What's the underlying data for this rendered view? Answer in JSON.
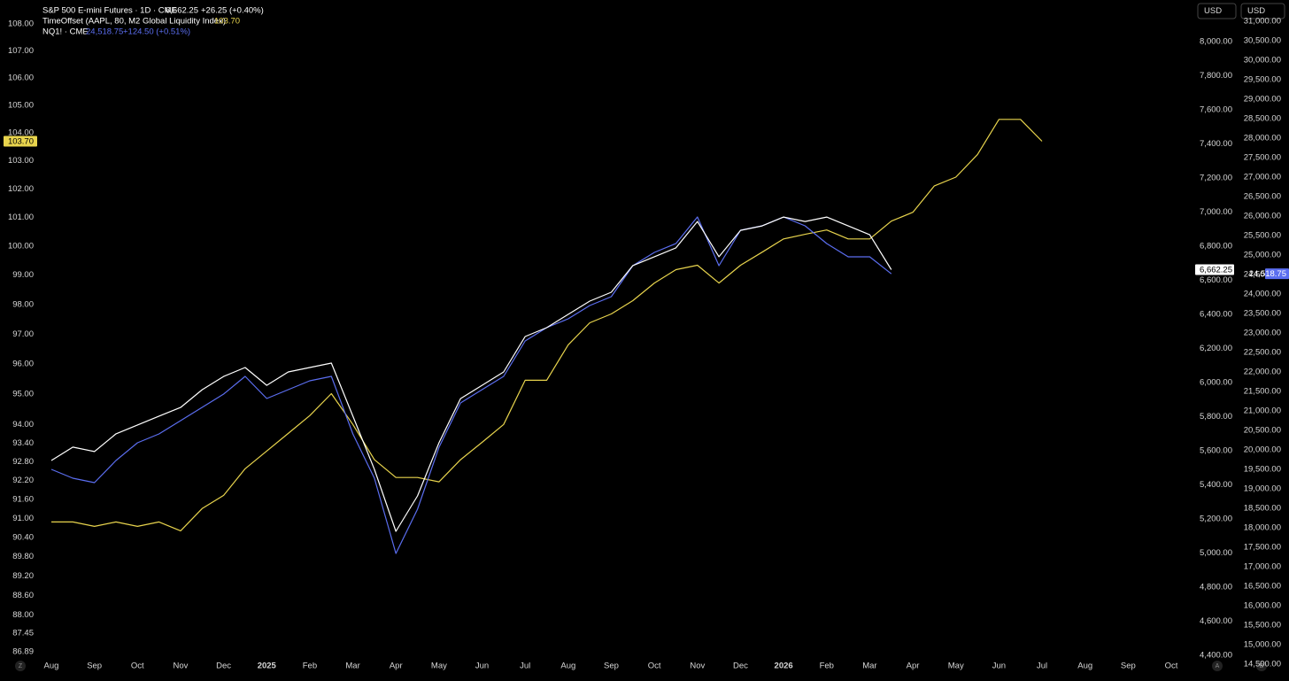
{
  "chart_data": {
    "type": "line",
    "categories": [
      "Aug",
      null,
      "Sep",
      null,
      "Oct",
      null,
      "Nov",
      null,
      "Dec",
      null,
      "2025",
      null,
      "Feb",
      null,
      "Mar",
      null,
      "Apr",
      null,
      "May",
      null,
      "Jun",
      null,
      "Jul",
      null,
      "Aug",
      null,
      "Sep",
      null,
      "Oct",
      null,
      "Nov",
      null,
      "Dec",
      null,
      "2026",
      null,
      "Feb",
      null,
      "Mar",
      null,
      "Apr",
      null,
      "May",
      null,
      "Jun",
      null,
      "Jul",
      null,
      "Aug",
      null,
      "Sep",
      null,
      "Oct"
    ],
    "series": [
      {
        "name": "TimeOffset (AAPL, 80, M2 Global Liquidity Index)",
        "color": "#e8d44d",
        "axis": "y",
        "last_value": 103.7,
        "last_label": "103.70",
        "values": [
          90.89,
          90.89,
          90.75,
          90.89,
          90.75,
          90.89,
          90.61,
          91.31,
          91.73,
          92.58,
          93.15,
          93.72,
          94.3,
          95.02,
          94.01,
          92.87,
          92.3,
          92.3,
          92.16,
          92.87,
          93.43,
          94.01,
          95.46,
          95.46,
          96.64,
          97.38,
          97.68,
          98.13,
          98.73,
          99.19,
          99.34,
          98.73,
          99.34,
          99.79,
          100.25,
          100.41,
          100.56,
          100.25,
          100.25,
          100.87,
          101.18,
          102.11,
          102.42,
          103.22,
          104.49,
          104.49,
          103.7,
          null,
          null,
          null,
          null,
          null,
          null
        ]
      },
      {
        "name": "NQ1! · CME",
        "color": "#5b6ef0",
        "axis": "y3",
        "last_value": 24518.75,
        "last_label": "24,518.75",
        "change_label": "+124.50 (+0.51%)",
        "values": [
          19500,
          19273,
          19159,
          19727,
          20182,
          20409,
          20750,
          21091,
          21432,
          21886,
          21318,
          21545,
          21773,
          21886,
          20409,
          19273,
          17341,
          18477,
          20068,
          21205,
          21545,
          21886,
          22795,
          23136,
          23364,
          23705,
          23932,
          24727,
          25068,
          25295,
          25977,
          24727,
          25636,
          25750,
          25977,
          25750,
          25295,
          24955,
          24955,
          24518.75,
          null,
          null,
          null,
          null,
          null,
          null,
          null,
          null,
          null,
          null,
          null,
          null,
          null
        ]
      },
      {
        "name": "S&P 500 E-mini Futures · 1D · CME",
        "color": "#ffffff",
        "axis": "y2",
        "last_value": 6662.25,
        "last_label": "6,662.25",
        "change_label": "+26.25 (+0.40%)",
        "values": [
          5543,
          5621,
          5595,
          5699,
          5751,
          5803,
          5854,
          5958,
          6036,
          6088,
          5984,
          6062,
          6088,
          6114,
          5803,
          5491,
          5127,
          5335,
          5647,
          5906,
          5984,
          6062,
          6270,
          6322,
          6400,
          6478,
          6530,
          6686,
          6738,
          6790,
          6945,
          6738,
          6893,
          6919,
          6971,
          6945,
          6971,
          6919,
          6867,
          6662.25,
          null,
          null,
          null,
          null,
          null,
          null,
          null,
          null,
          null,
          null,
          null,
          null,
          null
        ]
      }
    ],
    "log_y": true,
    "ylim": [
      86.52,
      108.9
    ],
    "yticks": [
      {
        "value": 108,
        "label": "108.00"
      },
      {
        "value": 107,
        "label": "107.00"
      },
      {
        "value": 106,
        "label": "106.00"
      },
      {
        "value": 105,
        "label": "105.00"
      },
      {
        "value": 104,
        "label": "104.00"
      },
      {
        "value": 103,
        "label": "103.00"
      },
      {
        "value": 102,
        "label": "102.00"
      },
      {
        "value": 101,
        "label": "101.00"
      },
      {
        "value": 100,
        "label": "100.00"
      },
      {
        "value": 99,
        "label": "99.00"
      },
      {
        "value": 98,
        "label": "98.00"
      },
      {
        "value": 97,
        "label": "97.00"
      },
      {
        "value": 96,
        "label": "96.00"
      },
      {
        "value": 95,
        "label": "95.00"
      },
      {
        "value": 94,
        "label": "94.00"
      },
      {
        "value": 93.4,
        "label": "93.40"
      },
      {
        "value": 92.8,
        "label": "92.80"
      },
      {
        "value": 92.2,
        "label": "92.20"
      },
      {
        "value": 91.6,
        "label": "91.60"
      },
      {
        "value": 91,
        "label": "91.00"
      },
      {
        "value": 90.4,
        "label": "90.40"
      },
      {
        "value": 89.8,
        "label": "89.80"
      },
      {
        "value": 89.2,
        "label": "89.20"
      },
      {
        "value": 88.6,
        "label": "88.60"
      },
      {
        "value": 88,
        "label": "88.00"
      },
      {
        "value": 87.45,
        "label": "87.45"
      },
      {
        "value": 86.89,
        "label": "86.89"
      }
    ],
    "y2lim": [
      4348,
      8244
    ],
    "y2ticks": [
      {
        "value": 8000,
        "label": "8,000.00"
      },
      {
        "value": 7800,
        "label": "7,800.00"
      },
      {
        "value": 7600,
        "label": "7,600.00"
      },
      {
        "value": 7400,
        "label": "7,400.00"
      },
      {
        "value": 7200,
        "label": "7,200.00"
      },
      {
        "value": 7000,
        "label": "7,000.00"
      },
      {
        "value": 6800,
        "label": "6,800.00"
      },
      {
        "value": 6600,
        "label": "6,600.00"
      },
      {
        "value": 6400,
        "label": "6,400.00"
      },
      {
        "value": 6200,
        "label": "6,200.00"
      },
      {
        "value": 6000,
        "label": "6,000.00"
      },
      {
        "value": 5800,
        "label": "5,800.00"
      },
      {
        "value": 5600,
        "label": "5,600.00"
      },
      {
        "value": 5400,
        "label": "5,400.00"
      },
      {
        "value": 5200,
        "label": "5,200.00"
      },
      {
        "value": 5000,
        "label": "5,000.00"
      },
      {
        "value": 4800,
        "label": "4,800.00"
      },
      {
        "value": 4600,
        "label": "4,600.00"
      },
      {
        "value": 4400,
        "label": "4,400.00"
      }
    ],
    "y3lim": [
      14500,
      31545
    ],
    "y3ticks": [
      {
        "value": 31000,
        "label": "31,000.00"
      },
      {
        "value": 30500,
        "label": "30,500.00"
      },
      {
        "value": 30000,
        "label": "30,000.00"
      },
      {
        "value": 29500,
        "label": "29,500.00"
      },
      {
        "value": 29000,
        "label": "29,000.00"
      },
      {
        "value": 28500,
        "label": "28,500.00"
      },
      {
        "value": 28000,
        "label": "28,000.00"
      },
      {
        "value": 27500,
        "label": "27,500.00"
      },
      {
        "value": 27000,
        "label": "27,000.00"
      },
      {
        "value": 26500,
        "label": "26,500.00"
      },
      {
        "value": 26000,
        "label": "26,000.00"
      },
      {
        "value": 25500,
        "label": "25,500.00"
      },
      {
        "value": 25000,
        "label": "25,000.00"
      },
      {
        "value": 24500,
        "label": "24,500.00"
      },
      {
        "value": 24000,
        "label": "24,000.00"
      },
      {
        "value": 23500,
        "label": "23,500.00"
      },
      {
        "value": 23000,
        "label": "23,000.00"
      },
      {
        "value": 22500,
        "label": "22,500.00"
      },
      {
        "value": 22000,
        "label": "22,000.00"
      },
      {
        "value": 21500,
        "label": "21,500.00"
      },
      {
        "value": 21000,
        "label": "21,000.00"
      },
      {
        "value": 20500,
        "label": "20,500.00"
      },
      {
        "value": 20000,
        "label": "20,000.00"
      },
      {
        "value": 19500,
        "label": "19,500.00"
      },
      {
        "value": 19000,
        "label": "19,000.00"
      },
      {
        "value": 18500,
        "label": "18,500.00"
      },
      {
        "value": 18000,
        "label": "18,000.00"
      },
      {
        "value": 17500,
        "label": "17,500.00"
      },
      {
        "value": 17000,
        "label": "17,000.00"
      },
      {
        "value": 16500,
        "label": "16,500.00"
      },
      {
        "value": 16000,
        "label": "16,000.00"
      },
      {
        "value": 15500,
        "label": "15,500.00"
      },
      {
        "value": 15000,
        "label": "15,000.00"
      },
      {
        "value": 14500,
        "label": "14,500.00"
      }
    ],
    "grid": false
  },
  "ui": {
    "currency_buttons": [
      "USD",
      "USD"
    ],
    "controls": [
      "Z",
      "A",
      "B"
    ]
  }
}
